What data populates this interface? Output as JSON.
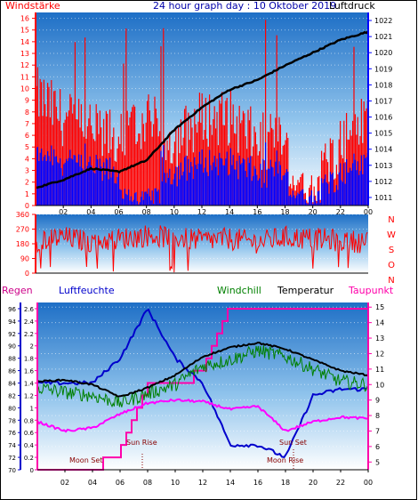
{
  "title": "24 hour graph day : 10 Oktober 2019",
  "top_chart": {
    "left_label": "Windstärke",
    "right_label": "Luftdruck",
    "left_ticks": [
      "0",
      "1",
      "2",
      "3",
      "4",
      "5",
      "6",
      "7",
      "8",
      "9",
      "10",
      "11",
      "12",
      "13",
      "14",
      "15",
      "16"
    ],
    "right_ticks": [
      "1011",
      "1012",
      "1013",
      "1014",
      "1015",
      "1016",
      "1017",
      "1018",
      "1019",
      "1020",
      "1021",
      "1022"
    ]
  },
  "mid_chart": {
    "left_ticks": [
      "0",
      "90",
      "180",
      "270",
      "360"
    ],
    "right_letters": [
      "N",
      "W",
      "S",
      "O",
      "N"
    ]
  },
  "bottom_chart": {
    "legend": {
      "regen": "Regen",
      "luftfeuchte": "Luftfeuchte",
      "windchill": "Windchill",
      "temperatur": "Temperatur",
      "taupunkt": "Taupunkt"
    },
    "rain_ticks": [
      "0",
      "0.2",
      "0.4",
      "0.6",
      "0.8",
      "1",
      "1.2",
      "1.4",
      "1.6",
      "1.8",
      "2",
      "2.2",
      "2.4",
      "2.6"
    ],
    "humidity_ticks": [
      "70",
      "72",
      "74",
      "76",
      "78",
      "80",
      "82",
      "84",
      "86",
      "88",
      "90",
      "92",
      "94",
      "96"
    ],
    "temp_ticks": [
      "5",
      "6",
      "7",
      "8",
      "9",
      "10",
      "11",
      "12",
      "13",
      "14",
      "15"
    ],
    "annotations": {
      "moon_set": "Moon Set",
      "sun_rise": "Sun Rise",
      "sun_set": "Sun Set",
      "moon_rise": "Moon Rise"
    }
  },
  "x_ticks": [
    "02",
    "04",
    "06",
    "08",
    "10",
    "12",
    "14",
    "16",
    "18",
    "20",
    "22",
    "00"
  ],
  "colors": {
    "wind_gust": "#ff0000",
    "wind_avg": "#0000ff",
    "pressure": "#000000",
    "regen": "#ff00aa",
    "luftfeuchte": "#0000cc",
    "windchill": "#008000",
    "temperatur": "#000000",
    "taupunkt": "#ff00ff",
    "sky_top": "#1a6fc8",
    "sky_bottom": "#ffffff"
  },
  "chart_data": [
    {
      "type": "line",
      "title": "24 hour graph day : 10 Oktober 2019",
      "x": [
        "00",
        "02",
        "04",
        "06",
        "08",
        "10",
        "12",
        "14",
        "16",
        "18",
        "20",
        "22",
        "00"
      ],
      "series": [
        {
          "name": "Luftdruck",
          "axis": "right",
          "values": [
            1011.6,
            1012.1,
            1012.8,
            1012.6,
            1013.3,
            1015.2,
            1016.6,
            1017.7,
            1018.3,
            1019.2,
            1020.0,
            1020.8,
            1021.3
          ]
        },
        {
          "name": "Windstärke",
          "axis": "left",
          "values": [
            9,
            7,
            6,
            5,
            7,
            5,
            7,
            7,
            5,
            5,
            1,
            5,
            7
          ]
        }
      ],
      "ylim_left": [
        0,
        16.5
      ],
      "ylim_right": [
        1010.5,
        1022.5
      ]
    },
    {
      "type": "line",
      "ylim": [
        0,
        360
      ],
      "x": [
        "00",
        "02",
        "04",
        "06",
        "08",
        "10",
        "12",
        "14",
        "16",
        "18",
        "20",
        "22",
        "00"
      ],
      "values": [
        200,
        220,
        190,
        210,
        230,
        220,
        200,
        210,
        190,
        220,
        210,
        200,
        190
      ]
    },
    {
      "type": "line",
      "x": [
        "00",
        "02",
        "04",
        "06",
        "08",
        "10",
        "12",
        "14",
        "16",
        "18",
        "20",
        "22",
        "00"
      ],
      "series": [
        {
          "name": "Temperatur",
          "axis": "temp",
          "values": [
            10.2,
            10.3,
            10.0,
            9.2,
            9.8,
            10.6,
            11.8,
            12.4,
            12.7,
            12.3,
            11.6,
            10.9,
            10.6
          ]
        },
        {
          "name": "Windchill",
          "axis": "temp",
          "values": [
            9.8,
            9.5,
            9.3,
            8.8,
            9.4,
            10.0,
            11.2,
            11.6,
            12.2,
            11.8,
            11.0,
            10.2,
            10.0
          ]
        },
        {
          "name": "Taupunkt",
          "axis": "temp",
          "values": [
            7.6,
            7.0,
            7.2,
            8.1,
            8.8,
            9.0,
            8.9,
            8.4,
            8.6,
            7.0,
            7.6,
            7.9,
            7.8
          ]
        },
        {
          "name": "Luftfeuchte",
          "axis": "humidity",
          "values": [
            84,
            84,
            84,
            88,
            96,
            88,
            84,
            74,
            74,
            72,
            82,
            83,
            83
          ]
        },
        {
          "name": "Regen",
          "axis": "rain",
          "values": [
            0,
            0,
            0,
            0.3,
            1.3,
            1.3,
            1.6,
            2.6,
            2.6,
            2.6,
            2.6,
            2.6,
            2.6
          ]
        }
      ],
      "ylim_temp": [
        4.5,
        15.3
      ],
      "ylim_humidity": [
        70,
        97
      ],
      "ylim_rain": [
        0,
        2.7
      ]
    }
  ]
}
